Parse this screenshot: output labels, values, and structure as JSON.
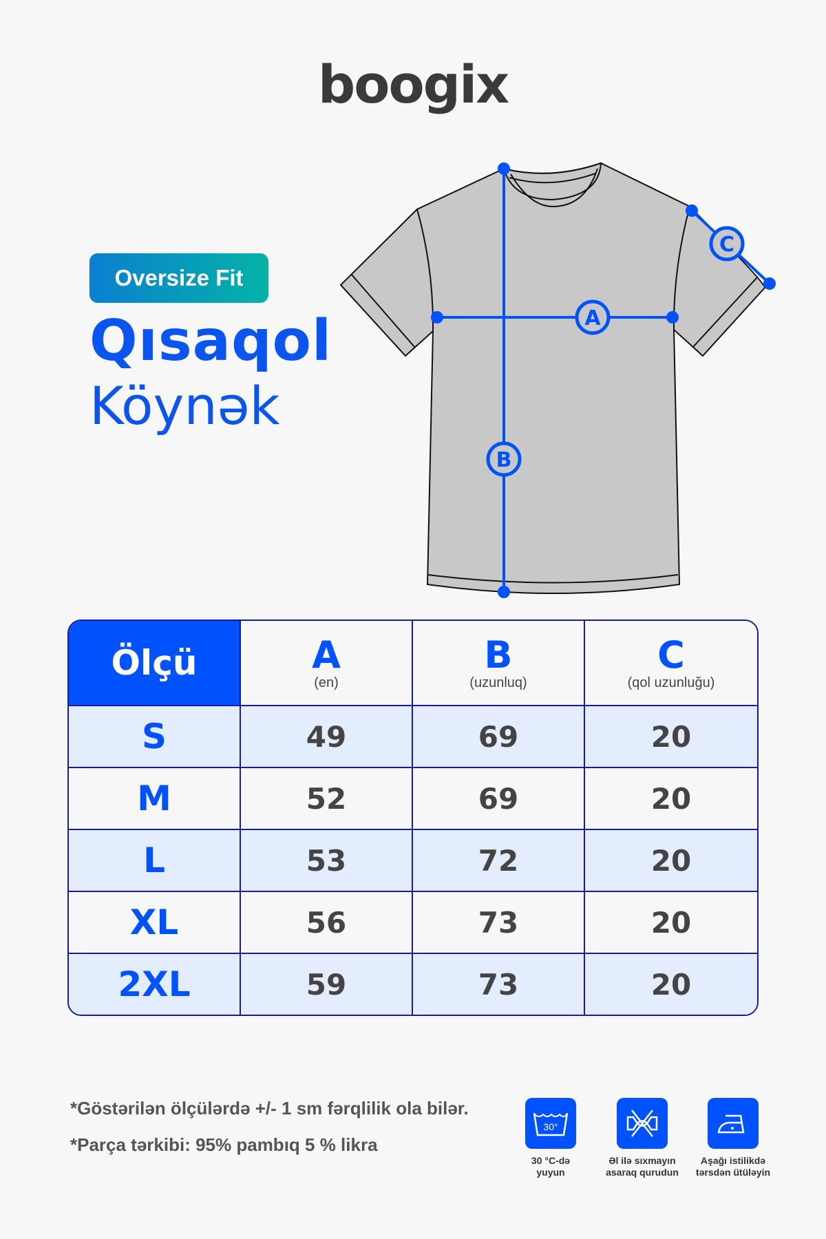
{
  "brand": {
    "logo": "boogix"
  },
  "product": {
    "badge": "Oversize Fit",
    "title_line1": "Qısaqol",
    "title_line2": "Köynək"
  },
  "diagram": {
    "labels": {
      "a": "A",
      "b": "B",
      "c": "C"
    },
    "accent": "#0052ff",
    "shirt_fill": "#c8c8c8"
  },
  "table": {
    "header": {
      "size": "Ölçü",
      "cols": [
        {
          "letter": "A",
          "sub": "(en)"
        },
        {
          "letter": "B",
          "sub": "(uzunluq)"
        },
        {
          "letter": "C",
          "sub": "(qol uzunluğu)"
        }
      ]
    },
    "rows": [
      {
        "size": "S",
        "a": "49",
        "b": "69",
        "c": "20"
      },
      {
        "size": "M",
        "a": "52",
        "b": "69",
        "c": "20"
      },
      {
        "size": "L",
        "a": "53",
        "b": "72",
        "c": "20"
      },
      {
        "size": "XL",
        "a": "56",
        "b": "73",
        "c": "20"
      },
      {
        "size": "2XL",
        "a": "59",
        "b": "73",
        "c": "20"
      }
    ]
  },
  "notes": [
    "*Göstərilən ölçülərdə +/- 1 sm fərqlilik ola bilər.",
    "*Parça tərkibi: 95% pambıq 5 % likra"
  ],
  "care": [
    {
      "icon": "wash-30-icon",
      "label1": "30 °C-də",
      "label2": "yuyun",
      "temp": "30°"
    },
    {
      "icon": "no-wring-icon",
      "label1": "Əl ilə sıxmayın",
      "label2": "asaraq qurudun"
    },
    {
      "icon": "iron-low-icon",
      "label1": "Aşağı istilikdə",
      "label2": "tərsdən ütüləyin"
    }
  ]
}
